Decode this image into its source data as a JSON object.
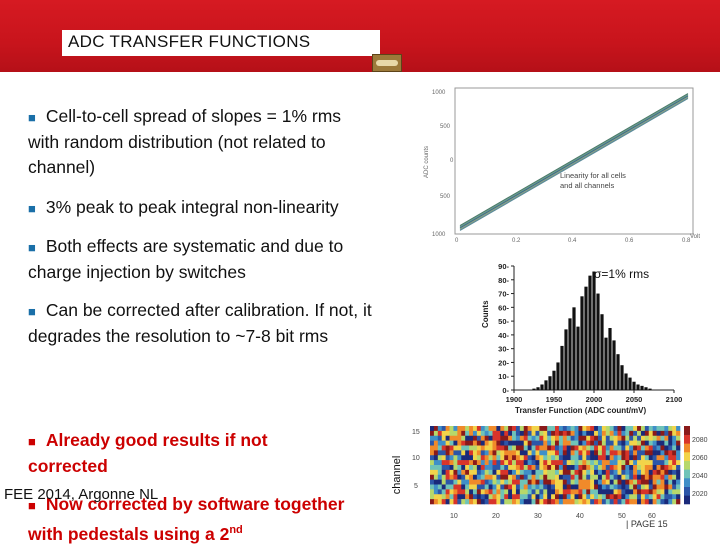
{
  "slide": {
    "title": "ADC TRANSFER FUNCTIONS",
    "bullets": [
      "Cell-to-cell spread of slopes = 1% rms with random distribution (not related to channel)",
      "3% peak to peak integral non-linearity",
      "Both effects are systematic and due to charge injection  by switches",
      "Can be corrected after calibration. If not, it degrades the resolution to ~7-8 bit rms",
      "Already good results if not corrected",
      "Now corrected by software together with pedestals using a 2"
    ],
    "bullet_superscript": "nd",
    "footer_left": "FEE 2014, Argonne NL",
    "footer_right": "| PAGE 15"
  },
  "transfer_plot": {
    "ylabel": "ADC counts",
    "xlabel": "Volt",
    "legend": [
      "Linearity for all cells",
      "and all channels"
    ],
    "yticks": [
      "1000",
      "500",
      "0",
      "500",
      "1000"
    ],
    "xticks": [
      "0",
      "0.2",
      "0.4",
      "0.6",
      "0.8"
    ]
  },
  "histogram": {
    "annotation": "σ=1% rms",
    "ylabel": "Counts",
    "xlabel": "Transfer Function (ADC count/mV)",
    "color": "#111111"
  },
  "heatmap": {
    "ylabel": "channel",
    "yticks": [
      "15",
      "10",
      "5"
    ],
    "xticks": [
      "10",
      "20",
      "30",
      "40",
      "50",
      "60"
    ],
    "colorbar_ticks": [
      "2080",
      "2060",
      "2040",
      "2020"
    ]
  },
  "chart_data": [
    {
      "type": "bar",
      "title": "",
      "xlabel": "Transfer Function (ADC count/mV)",
      "ylabel": "Counts",
      "x": [
        1925,
        1930,
        1935,
        1940,
        1945,
        1950,
        1955,
        1960,
        1965,
        1970,
        1975,
        1980,
        1985,
        1990,
        1995,
        2000,
        2005,
        2010,
        2015,
        2020,
        2025,
        2030,
        2035,
        2040,
        2045,
        2050,
        2055,
        2060,
        2065,
        2070
      ],
      "values": [
        1,
        2,
        4,
        7,
        10,
        14,
        20,
        32,
        44,
        52,
        60,
        46,
        68,
        75,
        83,
        86,
        70,
        55,
        38,
        45,
        36,
        26,
        18,
        12,
        9,
        6,
        4,
        3,
        2,
        1
      ],
      "xlim": [
        1900,
        2100
      ],
      "ylim": [
        0,
        90
      ],
      "xticks": [
        1900,
        1950,
        2000,
        2050,
        2100
      ],
      "yticks": [
        0,
        10,
        20,
        30,
        40,
        50,
        60,
        70,
        80,
        90
      ],
      "grid": false
    },
    {
      "type": "line",
      "title": "",
      "xlabel": "Volt",
      "ylabel": "ADC counts",
      "series": [
        {
          "name": "Linearity for all cells and all channels",
          "x": [
            0,
            1.0
          ],
          "values": [
            -1000,
            1000
          ]
        }
      ],
      "xlim": [
        0,
        1.0
      ],
      "ylim": [
        -1000,
        1000
      ],
      "grid": false
    },
    {
      "type": "heatmap",
      "title": "",
      "ylabel": "channel",
      "rows": 16,
      "cols": 64,
      "zlim": [
        2000,
        2100
      ],
      "colorbar_ticks": [
        2020,
        2040,
        2060,
        2080
      ]
    }
  ]
}
